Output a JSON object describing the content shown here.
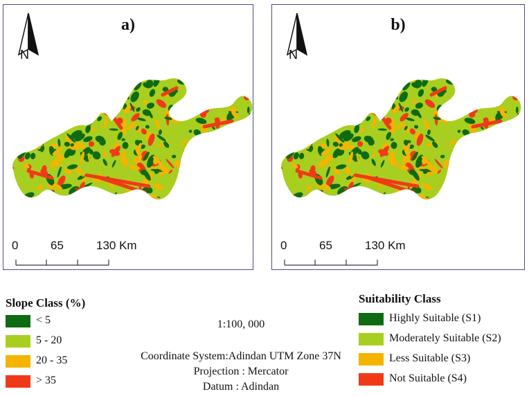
{
  "panels": [
    {
      "label": "a)",
      "north": "N"
    },
    {
      "label": "b)",
      "north": "N"
    }
  ],
  "scale_bar": {
    "ticks": [
      "0",
      "65",
      "130 Km"
    ]
  },
  "colors": {
    "dark_green": "#0f6b12",
    "light_green": "#a8cf1f",
    "orange": "#f4b400",
    "red": "#f03a17",
    "frame": "#4b4a8c"
  },
  "slope_legend": {
    "title": "Slope Class (%)",
    "items": [
      {
        "label": "< 5",
        "color": "#0f6b12"
      },
      {
        "label": "5 - 20",
        "color": "#a8cf1f"
      },
      {
        "label": "20 - 35",
        "color": "#f4b400"
      },
      {
        "label": "> 35",
        "color": "#f03a17"
      }
    ]
  },
  "suitability_legend": {
    "title": "Suitability Class",
    "items": [
      {
        "label": "Highly Suitable (S1)",
        "color": "#0f6b12"
      },
      {
        "label": "Moderately Suitable (S2)",
        "color": "#a8cf1f"
      },
      {
        "label": "Less Suitable (S3)",
        "color": "#f4b400"
      },
      {
        "label": "Not Suitable (S4)",
        "color": "#f03a17"
      }
    ]
  },
  "map_info": {
    "scale": "1:100, 000",
    "coordinate_system": "Coordinate System:Adindan UTM Zone 37N",
    "projection": "Projection : Mercator",
    "datum": "Datum : Adindan"
  }
}
